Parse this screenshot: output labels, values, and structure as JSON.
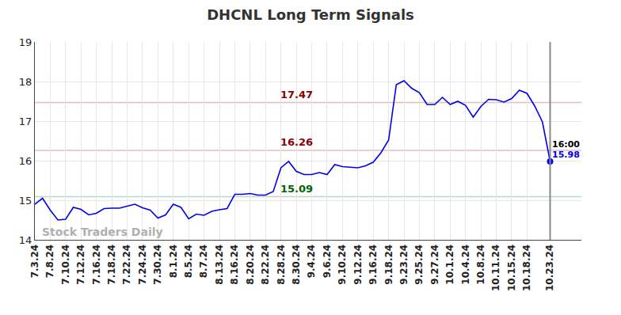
{
  "chart_data": {
    "type": "line",
    "title": "DHCNL Long Term Signals",
    "watermark": "Stock Traders Daily",
    "color": "#0000ee",
    "grid": true,
    "categories": [
      "7.3.24",
      null,
      "7.8.24",
      null,
      "7.10.24",
      null,
      "7.12.24",
      null,
      "7.16.24",
      null,
      "7.18.24",
      null,
      "7.22.24",
      null,
      "7.24.24",
      null,
      "7.30.24",
      null,
      "8.1.24",
      null,
      "8.5.24",
      null,
      "8.7.24",
      null,
      "8.13.24",
      null,
      "8.16.24",
      null,
      "8.20.24",
      null,
      "8.22.24",
      null,
      "8.28.24",
      null,
      "8.30.24",
      null,
      "9.4.24",
      null,
      "9.6.24",
      null,
      "9.10.24",
      null,
      "9.12.24",
      null,
      "9.16.24",
      null,
      "9.18.24",
      null,
      "9.23.24",
      null,
      "9.25.24",
      null,
      "9.27.24",
      null,
      "10.1.24",
      null,
      "10.4.24",
      null,
      "10.8.24",
      null,
      "10.11.24",
      null,
      "10.15.24",
      null,
      "10.18.24",
      null,
      null,
      "10.23.24"
    ],
    "values": [
      14.9,
      15.05,
      14.75,
      14.5,
      14.52,
      14.82,
      14.77,
      14.63,
      14.67,
      14.79,
      14.8,
      14.8,
      14.85,
      14.9,
      14.81,
      14.75,
      14.55,
      14.63,
      14.9,
      14.82,
      14.53,
      14.65,
      14.62,
      14.72,
      14.76,
      14.79,
      15.15,
      15.15,
      15.17,
      15.13,
      15.13,
      15.22,
      15.82,
      15.98,
      15.73,
      15.65,
      15.65,
      15.7,
      15.65,
      15.9,
      15.85,
      15.83,
      15.82,
      15.87,
      15.96,
      16.2,
      16.52,
      17.92,
      18.02,
      17.83,
      17.72,
      17.42,
      17.42,
      17.6,
      17.42,
      17.5,
      17.4,
      17.1,
      17.37,
      17.55,
      17.54,
      17.48,
      17.57,
      17.78,
      17.7,
      17.38,
      16.98,
      15.98
    ],
    "ylim": [
      14,
      19
    ],
    "yticks": [
      14,
      15,
      16,
      17,
      18,
      19
    ],
    "levels": [
      {
        "value": 17.47,
        "color": "#8b0000"
      },
      {
        "value": 16.26,
        "color": "#8b0000"
      },
      {
        "value": 15.09,
        "color": "#006400"
      }
    ],
    "end_annotation": {
      "time": "16:00",
      "value": 15.98
    }
  }
}
